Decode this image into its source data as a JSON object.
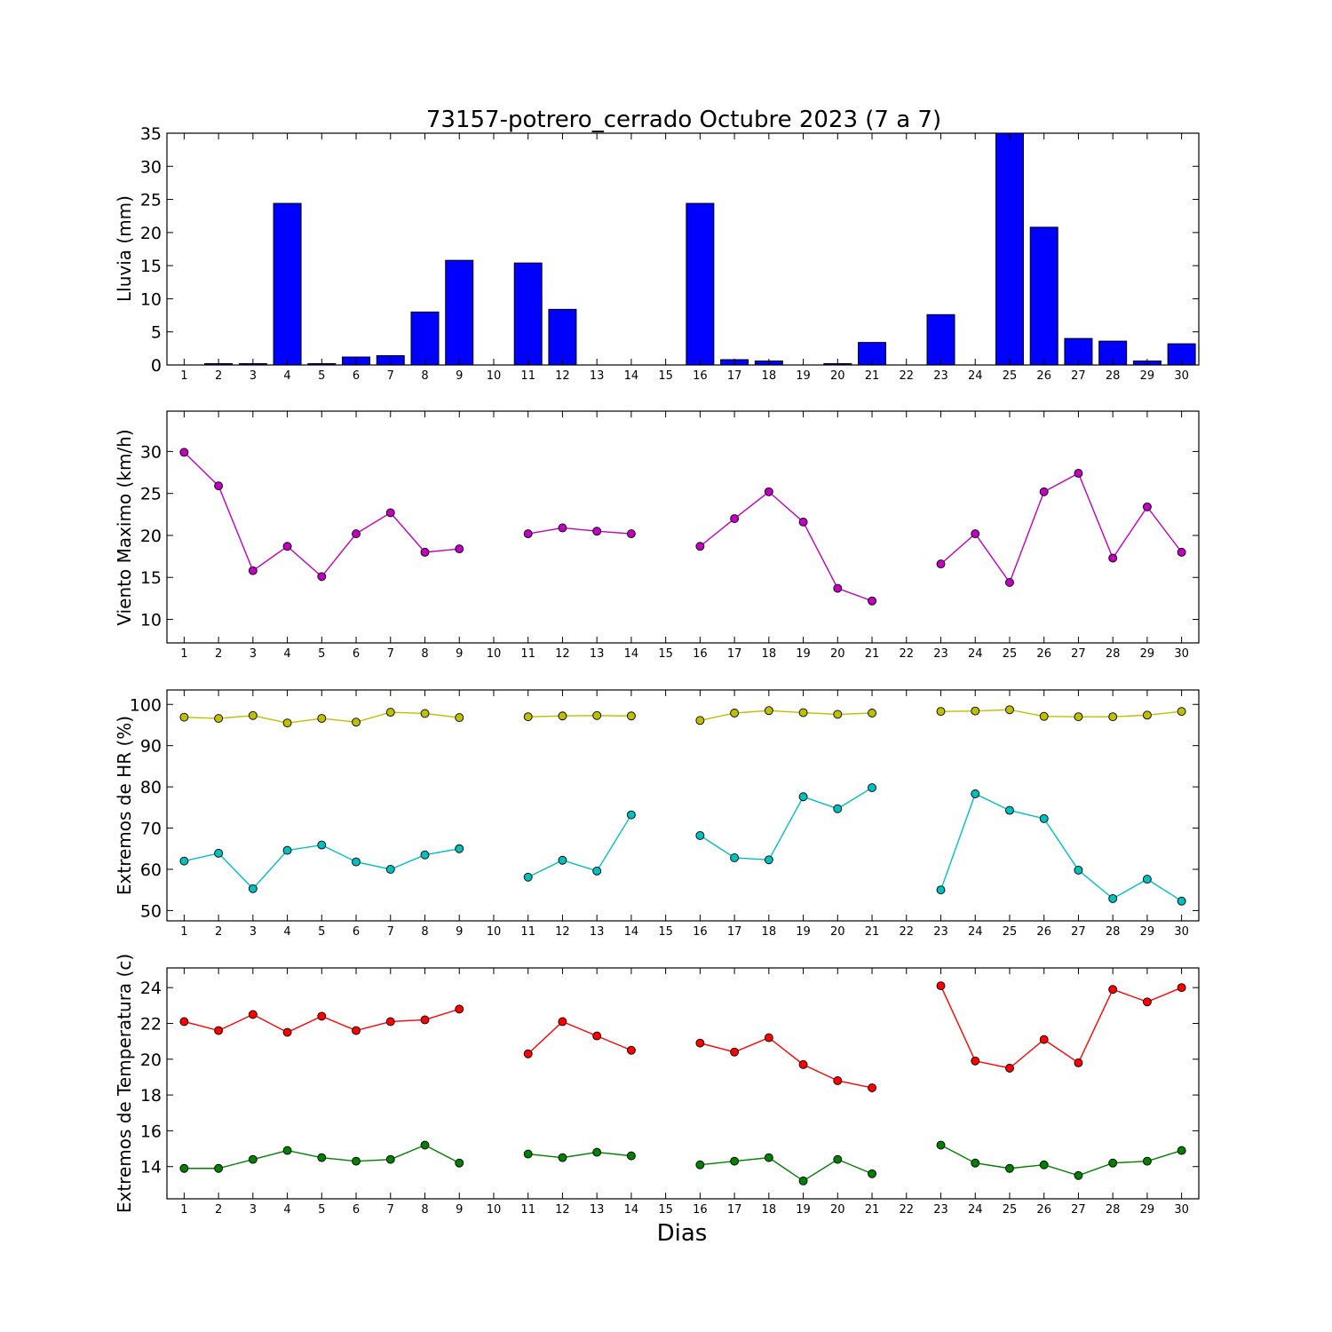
{
  "figure": {
    "title": "73157-potrero_cerrado Octubre 2023  (7 a 7)",
    "xlabel": "Dias"
  },
  "chart_data": [
    {
      "type": "bar",
      "ylabel": "Lluvia (mm)",
      "x": [
        1,
        2,
        3,
        4,
        5,
        6,
        7,
        8,
        9,
        10,
        11,
        12,
        13,
        14,
        15,
        16,
        17,
        18,
        19,
        20,
        21,
        22,
        23,
        24,
        25,
        26,
        27,
        28,
        29,
        30
      ],
      "xlim": [
        0.5,
        30.5
      ],
      "ylim": [
        0,
        35
      ],
      "yticks": [
        0,
        5,
        10,
        15,
        20,
        25,
        30,
        35
      ],
      "series": [
        {
          "color": "#0000ff",
          "values": [
            0,
            0.2,
            0.2,
            24.4,
            0.2,
            1.2,
            1.4,
            8.0,
            15.8,
            0,
            15.4,
            8.4,
            0,
            0,
            0,
            24.4,
            0.8,
            0.6,
            0,
            0.2,
            3.4,
            0,
            7.6,
            0,
            35.0,
            20.8,
            4.0,
            3.6,
            0.6,
            3.2
          ]
        }
      ]
    },
    {
      "type": "line",
      "ylabel": "Viento Maximo (km/h)",
      "x": [
        1,
        2,
        3,
        4,
        5,
        6,
        7,
        8,
        9,
        10,
        11,
        12,
        13,
        14,
        15,
        16,
        17,
        18,
        19,
        20,
        21,
        22,
        23,
        24,
        25,
        26,
        27,
        28,
        29,
        30
      ],
      "xlim": [
        0.5,
        30.5
      ],
      "ylim": [
        7.2,
        34.8
      ],
      "yticks": [
        10,
        15,
        20,
        25,
        30
      ],
      "series": [
        {
          "color": "#bf00bf",
          "values": [
            29.9,
            25.9,
            15.8,
            18.7,
            15.1,
            20.2,
            22.7,
            18.0,
            18.4,
            null,
            20.2,
            20.9,
            20.5,
            20.2,
            null,
            18.7,
            22.0,
            25.2,
            21.6,
            13.7,
            12.2,
            null,
            16.6,
            20.2,
            14.4,
            25.2,
            27.4,
            17.3,
            23.4,
            18.0
          ]
        }
      ]
    },
    {
      "type": "line",
      "ylabel": "Extremos de HR (%)",
      "x": [
        1,
        2,
        3,
        4,
        5,
        6,
        7,
        8,
        9,
        10,
        11,
        12,
        13,
        14,
        15,
        16,
        17,
        18,
        19,
        20,
        21,
        22,
        23,
        24,
        25,
        26,
        27,
        28,
        29,
        30
      ],
      "xlim": [
        0.5,
        30.5
      ],
      "ylim": [
        47.5,
        103.5
      ],
      "yticks": [
        50,
        60,
        70,
        80,
        90,
        100
      ],
      "series": [
        {
          "color": "#bfbf00",
          "values": [
            96.9,
            96.6,
            97.3,
            95.5,
            96.6,
            95.7,
            98.1,
            97.8,
            96.8,
            null,
            97.0,
            97.2,
            97.3,
            97.2,
            null,
            96.1,
            97.9,
            98.5,
            98.0,
            97.6,
            97.9,
            null,
            98.3,
            98.4,
            98.7,
            97.1,
            97.0,
            97.0,
            97.4,
            98.3
          ]
        },
        {
          "color": "#00bfbf",
          "values": [
            62.0,
            63.9,
            55.3,
            64.6,
            65.9,
            61.8,
            60.0,
            63.5,
            65.0,
            null,
            58.1,
            62.2,
            59.6,
            73.2,
            null,
            68.2,
            62.8,
            62.3,
            77.6,
            74.7,
            79.8,
            null,
            55.0,
            78.3,
            74.3,
            72.3,
            59.8,
            52.9,
            57.6,
            52.3
          ]
        }
      ]
    },
    {
      "type": "line",
      "ylabel": "Extremos de Temperatura (c)",
      "x": [
        1,
        2,
        3,
        4,
        5,
        6,
        7,
        8,
        9,
        10,
        11,
        12,
        13,
        14,
        15,
        16,
        17,
        18,
        19,
        20,
        21,
        22,
        23,
        24,
        25,
        26,
        27,
        28,
        29,
        30
      ],
      "xlim": [
        0.5,
        30.5
      ],
      "ylim": [
        12.2,
        25.1
      ],
      "yticks": [
        14,
        16,
        18,
        20,
        22,
        24
      ],
      "series": [
        {
          "color": "#ff0000",
          "values": [
            22.1,
            21.6,
            22.5,
            21.5,
            22.4,
            21.6,
            22.1,
            22.2,
            22.8,
            null,
            20.3,
            22.1,
            21.3,
            20.5,
            null,
            20.9,
            20.4,
            21.2,
            19.7,
            18.8,
            18.4,
            null,
            24.1,
            19.9,
            19.5,
            21.1,
            19.8,
            23.9,
            23.2,
            24.0
          ]
        },
        {
          "color": "#007f00",
          "values": [
            13.9,
            13.9,
            14.4,
            14.9,
            14.5,
            14.3,
            14.4,
            15.2,
            14.2,
            null,
            14.7,
            14.5,
            14.8,
            14.6,
            null,
            14.1,
            14.3,
            14.5,
            13.2,
            14.4,
            13.6,
            null,
            15.2,
            14.2,
            13.9,
            14.1,
            13.5,
            14.2,
            14.3,
            14.9
          ]
        }
      ]
    }
  ]
}
